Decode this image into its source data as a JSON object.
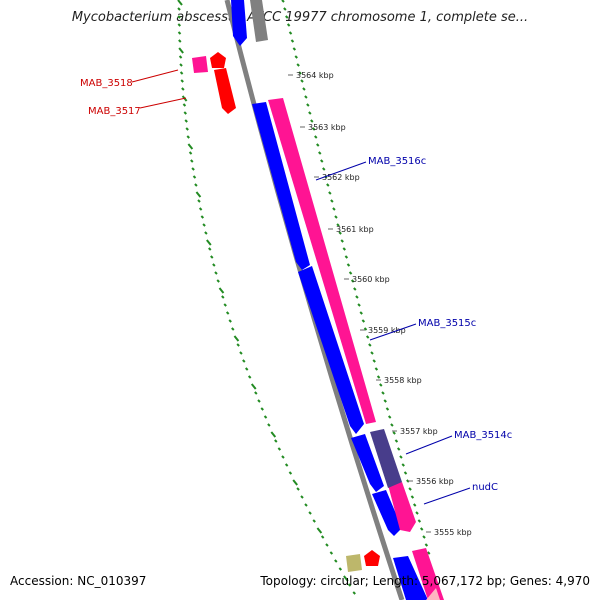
{
  "title": "Mycobacterium abscessus ATCC 19977 chromosome 1, complete se...",
  "accession_text": "Accession: NC_010397",
  "summary_text": "Topology: circular; Length: 5,067,172 bp; Genes: 4,970",
  "colors": {
    "forward_strand": "#ff1493",
    "reverse_strand": "#0000ff",
    "highlight_gene": "#ff0000",
    "label_forward": "#cc0000",
    "label_reverse": "#0000aa",
    "backbone": "#808080",
    "ticks": "#228b22",
    "other_gene": "#bdb76b",
    "overlap_gene": "#483d8b"
  },
  "scale_labels": [
    {
      "text": "3564 kbp",
      "kbp": 3564
    },
    {
      "text": "3563 kbp",
      "kbp": 3563
    },
    {
      "text": "3562 kbp",
      "kbp": 3562
    },
    {
      "text": "3561 kbp",
      "kbp": 3561
    },
    {
      "text": "3560 kbp",
      "kbp": 3560
    },
    {
      "text": "3559 kbp",
      "kbp": 3559
    },
    {
      "text": "3558 kbp",
      "kbp": 3558
    },
    {
      "text": "3557 kbp",
      "kbp": 3557
    },
    {
      "text": "3556 kbp",
      "kbp": 3556
    },
    {
      "text": "3555 kbp",
      "kbp": 3555
    }
  ],
  "gene_labels": [
    {
      "text": "MAB_3518",
      "strand": "forward"
    },
    {
      "text": "MAB_3517",
      "strand": "forward"
    },
    {
      "text": "MAB_3516c",
      "strand": "reverse"
    },
    {
      "text": "MAB_3515c",
      "strand": "reverse"
    },
    {
      "text": "MAB_3514c",
      "strand": "reverse"
    },
    {
      "text": "nudC",
      "strand": "reverse"
    }
  ]
}
